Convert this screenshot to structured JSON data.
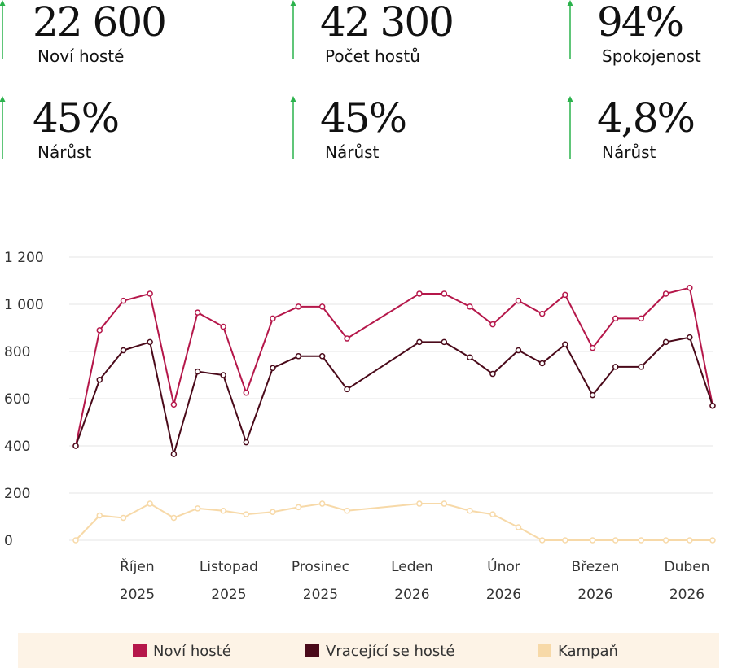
{
  "kpis": [
    {
      "value": "22 600",
      "label": "Noví hosté"
    },
    {
      "value": "42 300",
      "label": "Počet hostů"
    },
    {
      "value": "94%",
      "label": "Spokojenost"
    },
    {
      "value": "45%",
      "label": "Nárůst"
    },
    {
      "value": "45%",
      "label": "Nárůst"
    },
    {
      "value": "4,8%",
      "label": "Nárůst"
    }
  ],
  "chart_data": {
    "type": "line",
    "x": [
      -0.67,
      -0.41,
      -0.15,
      0.14,
      0.4,
      0.66,
      0.94,
      1.19,
      1.48,
      1.76,
      2.02,
      2.29,
      3.08,
      3.35,
      3.63,
      3.88,
      4.16,
      4.42,
      4.67,
      4.97,
      5.22,
      5.5,
      5.77,
      6.03,
      6.28
    ],
    "xlim": [
      -0.67,
      6.28
    ],
    "xticks": [
      {
        "value": 0,
        "label": "Říjen 2025"
      },
      {
        "value": 1,
        "label": "Listopad 2025"
      },
      {
        "value": 2,
        "label": "Prosinec 2025"
      },
      {
        "value": 3,
        "label": "Leden 2026"
      },
      {
        "value": 4,
        "label": "Únor 2026"
      },
      {
        "value": 5,
        "label": "Březen 2026"
      },
      {
        "value": 6,
        "label": "Duben 2026"
      }
    ],
    "ylim": [
      0,
      1200
    ],
    "yticks": [
      0,
      200,
      400,
      600,
      800,
      {
        "value": 1000,
        "label": "1 000"
      },
      {
        "value": 1200,
        "label": "1 200"
      }
    ],
    "grid": true,
    "legend": "bottom",
    "series": [
      {
        "name": "Noví hosté",
        "color": "#b5174a",
        "values": [
          400,
          890,
          1015,
          1045,
          575,
          965,
          905,
          625,
          940,
          990,
          990,
          855,
          1045,
          1045,
          990,
          915,
          1015,
          960,
          1040,
          815,
          940,
          940,
          1045,
          1070,
          570
        ]
      },
      {
        "name": "Vracející se hosté",
        "color": "#4a0a1a",
        "values": [
          400,
          680,
          805,
          840,
          365,
          715,
          700,
          415,
          730,
          780,
          780,
          640,
          840,
          840,
          775,
          705,
          805,
          750,
          830,
          615,
          735,
          735,
          840,
          860,
          570
        ]
      },
      {
        "name": "Kampaň",
        "color": "#f7d9a8",
        "values": [
          0,
          105,
          95,
          155,
          95,
          135,
          125,
          110,
          120,
          140,
          155,
          125,
          155,
          155,
          125,
          110,
          55,
          0,
          0,
          0,
          0,
          0,
          0,
          0,
          0
        ]
      }
    ]
  }
}
